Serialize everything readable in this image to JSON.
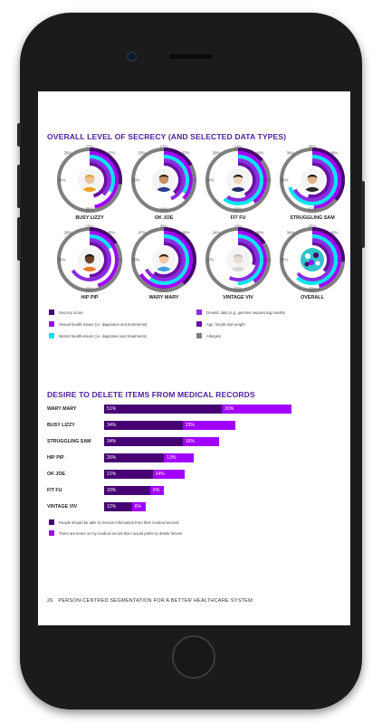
{
  "colors": {
    "secrecy": "#460073",
    "sexual": "#a100ff",
    "mental": "#00e5f0",
    "genetic": "#8a2be2",
    "age": "#6c0fa8",
    "allergies": "#7f7f7f",
    "bar_a": "#460073",
    "bar_b": "#a100ff",
    "title": "#4b1fa0"
  },
  "section1": {
    "title": "OVERALL LEVEL OF SECRECY (AND SELECTED DATA TYPES)"
  },
  "chart_data": [
    {
      "type": "pie",
      "title": "OVERALL LEVEL OF SECRECY (AND SELECTED DATA TYPES)",
      "legend_placement": "bottom",
      "series_names": [
        "Secrecy score",
        "Sexual health issues (i.e. diagnoses and treatments)",
        "Mental health issues (i.e. diagnoses and treatments)",
        "Genetic data (e.g. genome sequencing results)",
        "Age, height and weight",
        "Allergies"
      ],
      "personas": [
        {
          "name": "BUSY LIZZY",
          "icon": "persona-busy-lizzy-icon",
          "labels": [
            "27%",
            "47%",
            "33%",
            "38%",
            "46%",
            "35%"
          ]
        },
        {
          "name": "OK JOE",
          "icon": "persona-ok-joe-icon",
          "labels": [
            "17%",
            "37%",
            "34%",
            "44%",
            "39%",
            "33%"
          ]
        },
        {
          "name": "FIT FU",
          "icon": "persona-fit-fu-icon",
          "labels": [
            "14%",
            "40%",
            "60%",
            "59%",
            "43%",
            "30%"
          ]
        },
        {
          "name": "STRUGGLING SAM",
          "icon": "persona-struggling-sam-icon",
          "labels": [
            "36%",
            "49%",
            "70%",
            "67%",
            "54%",
            "34%"
          ]
        },
        {
          "name": "HIP PIP",
          "icon": "persona-hip-pip-icon",
          "labels": [
            "16%",
            "45%",
            "17%",
            "66%",
            "50%",
            "29%"
          ]
        },
        {
          "name": "WARY MARY",
          "icon": "persona-wary-mary-icon",
          "labels": [
            "39%",
            "66%",
            "60%",
            "67%",
            "60%",
            "47%"
          ]
        },
        {
          "name": "VINTAGE VIV",
          "icon": "persona-vintage-viv-icon",
          "labels": [
            "16%",
            "40%",
            "50%",
            "57%",
            "30%",
            "24%"
          ]
        },
        {
          "name": "OVERALL",
          "icon": "overall-pills-icon",
          "labels": [
            "26%",
            "46%",
            "61%",
            "63%",
            "37%",
            "34%"
          ]
        }
      ]
    },
    {
      "type": "bar",
      "orientation": "horizontal",
      "stacked": true,
      "title": "DESIRE TO DELETE ITEMS FROM MEDICAL RECORDS",
      "legend_placement": "bottom",
      "categories": [
        "WARY MARY",
        "BUSY LIZZY",
        "STRUGGLING SAM",
        "HIP PIP",
        "OK JOE",
        "FIT FU",
        "VINTAGE VIV"
      ],
      "series": [
        {
          "name": "People should be able to remove information from their medical records",
          "values": [
            51,
            34,
            34,
            26,
            21,
            20,
            12
          ],
          "labels": [
            "51%",
            "34%",
            "34%",
            "26%",
            "21%",
            "20%",
            "12%"
          ]
        },
        {
          "name": "There are items on my medical record that I would prefer to delete forever",
          "values": [
            30,
            23,
            16,
            13,
            14,
            6,
            6
          ],
          "labels": [
            "30%",
            "23%",
            "16%",
            "13%",
            "14%",
            "6%",
            "6%"
          ]
        }
      ]
    }
  ],
  "legend1": [
    {
      "label": "Secrecy score",
      "color": "#460073"
    },
    {
      "label": "Genetic data (e.g. genome sequencing results)",
      "color": "#8a2be2"
    },
    {
      "label": "Sexual health issues (i.e. diagnoses and treatments)",
      "color": "#a100ff"
    },
    {
      "label": "Age, height and weight",
      "color": "#6c0fa8"
    },
    {
      "label": "Mental health issues (i.e. diagnoses and treatments)",
      "color": "#00e5f0"
    },
    {
      "label": "Allergies",
      "color": "#7f7f7f"
    }
  ],
  "section2": {
    "title": "DESIRE TO DELETE ITEMS FROM MEDICAL RECORDS"
  },
  "footer": {
    "page": "26",
    "text": "PERSON-CENTRED SEGMENTATION FOR A BETTER HEALTHCARE SYSTEM"
  }
}
